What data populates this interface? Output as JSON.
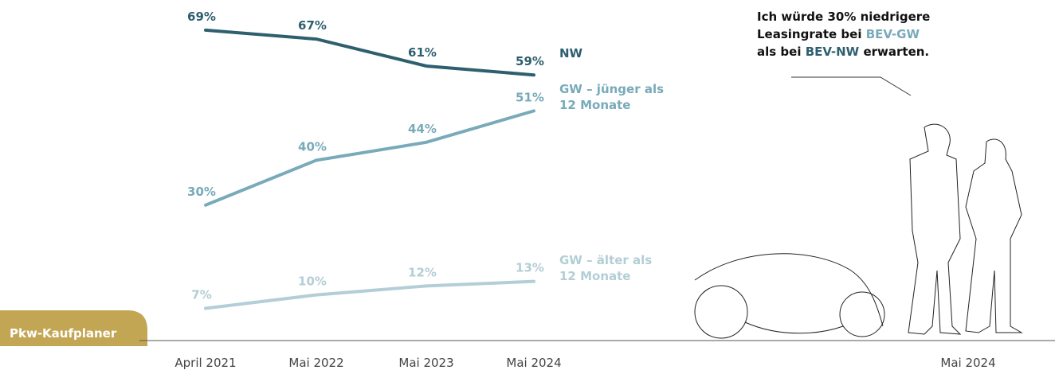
{
  "chart_data": {
    "type": "line",
    "badge": "Pkw-Kaufplaner",
    "categories": [
      "April 2021",
      "Mai 2022",
      "Mai 2023",
      "Mai 2024"
    ],
    "series": [
      {
        "name": "NW",
        "color": "#2e5f6e",
        "values": [
          69,
          67,
          61,
          59
        ],
        "value_labels": [
          "69%",
          "67%",
          "61%",
          "59%"
        ]
      },
      {
        "name": "GW – jünger als 12 Monate",
        "color": "#78aab9",
        "values": [
          30,
          40,
          44,
          51
        ],
        "value_labels": [
          "30%",
          "40%",
          "44%",
          "51%"
        ]
      },
      {
        "name": "GW – älter als 12 Monate",
        "color": "#b3ced6",
        "values": [
          7,
          10,
          12,
          13
        ],
        "value_labels": [
          "7%",
          "10%",
          "12%",
          "13%"
        ]
      }
    ],
    "ylim": [
      0,
      75
    ],
    "annotation": {
      "lines": [
        [
          {
            "text": "Ich würde 30% niedrigere"
          }
        ],
        [
          {
            "text": "Leasingrate bei "
          },
          {
            "text": "BEV-GW",
            "color": "#78aab9"
          }
        ],
        [
          {
            "text": "als bei "
          },
          {
            "text": "BEV-NW",
            "color": "#2e5f6e"
          },
          {
            "text": " erwarten."
          }
        ]
      ]
    },
    "figure_label": "Mai 2024"
  }
}
